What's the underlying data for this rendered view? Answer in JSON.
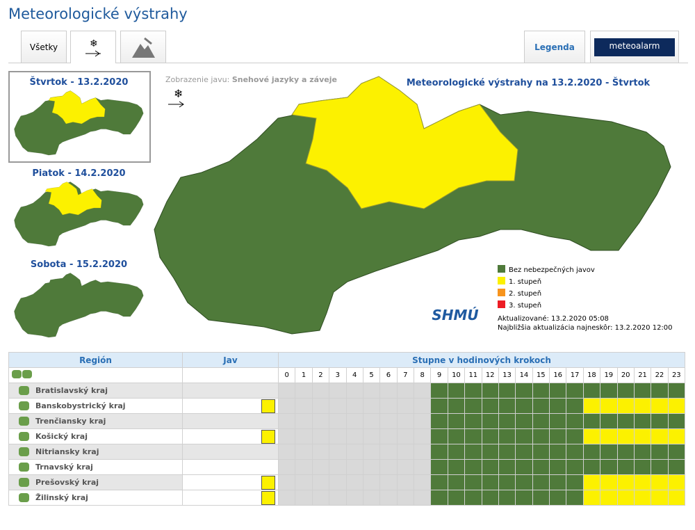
{
  "header": {
    "title": "Meteorologické výstrahy",
    "tabs": [
      "Všetky"
    ],
    "legend_tab": "Legenda",
    "logo": "meteoalarm"
  },
  "days": [
    "Štvrtok - 13.2.2020",
    "Piatok - 14.2.2020",
    "Sobota - 15.2.2020"
  ],
  "map": {
    "phenomenon_label": "Zobrazenie javu:",
    "phenomenon": "Snehové jazyky a záveje",
    "title": "Meteorologické výstrahy na 13.2.2020 - Štvrtok",
    "legend": [
      {
        "label": "Bez nebezpečných javov",
        "color": "#4f7a3a"
      },
      {
        "label": "1. stupeň",
        "color": "#fcf100"
      },
      {
        "label": "2. stupeň",
        "color": "#f7941d"
      },
      {
        "label": "3. stupeň",
        "color": "#ed1c24"
      }
    ],
    "org": "SHMÚ",
    "updated": "Aktualizované: 13.2.2020 05:08",
    "next_update": "Najbližšia aktualizácia najneskôr: 13.2.2020 12:00"
  },
  "table": {
    "headers": [
      "Región",
      "Jav",
      "Stupne v hodinových krokoch"
    ],
    "hours": [
      0,
      1,
      2,
      3,
      4,
      5,
      6,
      7,
      8,
      9,
      10,
      11,
      12,
      13,
      14,
      15,
      16,
      17,
      18,
      19,
      20,
      21,
      22,
      23
    ],
    "rows": [
      {
        "region": "Bratislavský kraj",
        "icon": false,
        "levels": [
          null,
          null,
          null,
          null,
          null,
          null,
          null,
          null,
          null,
          0,
          0,
          0,
          0,
          0,
          0,
          0,
          0,
          0,
          0,
          0,
          0,
          0,
          0,
          0
        ]
      },
      {
        "region": "Banskobystrický kraj",
        "icon": true,
        "levels": [
          null,
          null,
          null,
          null,
          null,
          null,
          null,
          null,
          null,
          0,
          0,
          0,
          0,
          0,
          0,
          0,
          0,
          0,
          1,
          1,
          1,
          1,
          1,
          1
        ]
      },
      {
        "region": "Trenčiansky kraj",
        "icon": false,
        "levels": [
          null,
          null,
          null,
          null,
          null,
          null,
          null,
          null,
          null,
          0,
          0,
          0,
          0,
          0,
          0,
          0,
          0,
          0,
          0,
          0,
          0,
          0,
          0,
          0
        ]
      },
      {
        "region": "Košický kraj",
        "icon": true,
        "levels": [
          null,
          null,
          null,
          null,
          null,
          null,
          null,
          null,
          null,
          0,
          0,
          0,
          0,
          0,
          0,
          0,
          0,
          0,
          1,
          1,
          1,
          1,
          1,
          1
        ]
      },
      {
        "region": "Nitriansky kraj",
        "icon": false,
        "levels": [
          null,
          null,
          null,
          null,
          null,
          null,
          null,
          null,
          null,
          0,
          0,
          0,
          0,
          0,
          0,
          0,
          0,
          0,
          0,
          0,
          0,
          0,
          0,
          0
        ]
      },
      {
        "region": "Trnavský kraj",
        "icon": false,
        "levels": [
          null,
          null,
          null,
          null,
          null,
          null,
          null,
          null,
          null,
          0,
          0,
          0,
          0,
          0,
          0,
          0,
          0,
          0,
          0,
          0,
          0,
          0,
          0,
          0
        ]
      },
      {
        "region": "Prešovský kraj",
        "icon": true,
        "levels": [
          null,
          null,
          null,
          null,
          null,
          null,
          null,
          null,
          null,
          0,
          0,
          0,
          0,
          0,
          0,
          0,
          0,
          0,
          1,
          1,
          1,
          1,
          1,
          1
        ]
      },
      {
        "region": "Žilinský kraj",
        "icon": true,
        "levels": [
          null,
          null,
          null,
          null,
          null,
          null,
          null,
          null,
          null,
          0,
          0,
          0,
          0,
          0,
          0,
          0,
          0,
          0,
          1,
          1,
          1,
          1,
          1,
          1
        ]
      }
    ]
  }
}
